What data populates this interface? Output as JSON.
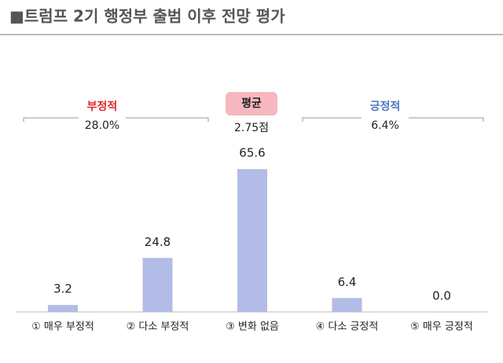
{
  "chart_data": {
    "type": "bar",
    "title": "■트럼프 2기 행정부 출범 이후 전망 평가",
    "categories": [
      "① 매우 부정적",
      "② 다소 부정적",
      "③ 변화 없음",
      "④ 다소 긍정적",
      "⑤ 매우 긍정적"
    ],
    "values": [
      3.2,
      24.8,
      65.6,
      6.4,
      0.0
    ],
    "value_labels": [
      "3.2",
      "24.8",
      "65.6",
      "6.4",
      "0.0"
    ],
    "color": "#b3bce6",
    "ylim": [
      0,
      70
    ],
    "annotations": {
      "negative": {
        "label": "부정적",
        "value": "28.0%",
        "color": "#e0262b"
      },
      "average": {
        "label": "평균",
        "value": "2.75점"
      },
      "positive": {
        "label": "긍정적",
        "value": "6.4%",
        "color": "#4a78c2"
      }
    }
  }
}
